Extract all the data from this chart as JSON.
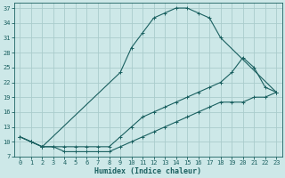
{
  "xlabel": "Humidex (Indice chaleur)",
  "background_color": "#cde8e8",
  "grid_color": "#aacccc",
  "line_color": "#1a6060",
  "xlim": [
    -0.5,
    23.5
  ],
  "ylim": [
    7,
    38
  ],
  "xticks": [
    0,
    1,
    2,
    3,
    4,
    5,
    6,
    7,
    8,
    9,
    10,
    11,
    12,
    13,
    14,
    15,
    16,
    17,
    18,
    19,
    20,
    21,
    22,
    23
  ],
  "yticks": [
    7,
    10,
    13,
    16,
    19,
    22,
    25,
    28,
    31,
    34,
    37
  ],
  "curve_top_x": [
    0,
    1,
    2,
    9,
    10,
    11,
    12,
    13,
    14,
    15,
    16,
    17,
    18,
    23
  ],
  "curve_top_y": [
    11,
    10,
    9,
    24,
    29,
    32,
    35,
    36,
    37,
    37,
    36,
    35,
    31,
    20
  ],
  "curve_mid_x": [
    0,
    1,
    2,
    3,
    4,
    5,
    6,
    7,
    8,
    9,
    10,
    11,
    12,
    13,
    14,
    15,
    16,
    17,
    18,
    19,
    20,
    21,
    22,
    23
  ],
  "curve_mid_y": [
    11,
    10,
    9,
    9,
    9,
    9,
    9,
    9,
    9,
    11,
    13,
    15,
    16,
    17,
    18,
    19,
    20,
    21,
    22,
    24,
    27,
    25,
    21,
    20
  ],
  "curve_bot_x": [
    0,
    1,
    2,
    3,
    4,
    5,
    6,
    7,
    8,
    9,
    10,
    11,
    12,
    13,
    14,
    15,
    16,
    17,
    18,
    19,
    20,
    21,
    22,
    23
  ],
  "curve_bot_y": [
    11,
    10,
    9,
    9,
    8,
    8,
    8,
    8,
    8,
    9,
    10,
    11,
    12,
    13,
    14,
    15,
    16,
    17,
    18,
    18,
    18,
    19,
    19,
    20
  ]
}
